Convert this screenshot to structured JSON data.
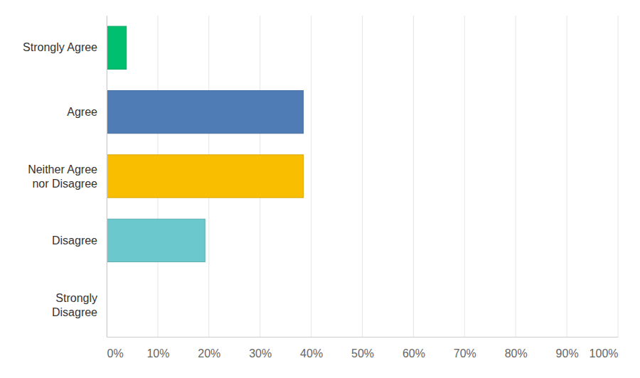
{
  "chart_data": {
    "type": "bar",
    "orientation": "horizontal",
    "categories": [
      "Strongly Agree",
      "Agree",
      "Neither Agree nor Disagree",
      "Disagree",
      "Strongly Disagree"
    ],
    "values": [
      3.85,
      38.46,
      38.46,
      19.23,
      0
    ],
    "colors": [
      "#00bf6f",
      "#507cb6",
      "#f9be00",
      "#6bc8cd",
      "#ff8b4f"
    ],
    "xlim": [
      0,
      100
    ],
    "xticks": [
      {
        "value": 0,
        "label": "0%"
      },
      {
        "value": 10,
        "label": "10%"
      },
      {
        "value": 20,
        "label": "20%"
      },
      {
        "value": 30,
        "label": "30%"
      },
      {
        "value": 40,
        "label": "40%"
      },
      {
        "value": 50,
        "label": "50%"
      },
      {
        "value": 60,
        "label": "60%"
      },
      {
        "value": 70,
        "label": "70%"
      },
      {
        "value": 80,
        "label": "80%"
      },
      {
        "value": 90,
        "label": "90%"
      },
      {
        "value": 100,
        "label": "100%"
      }
    ],
    "grid": true,
    "data_labels": false
  }
}
